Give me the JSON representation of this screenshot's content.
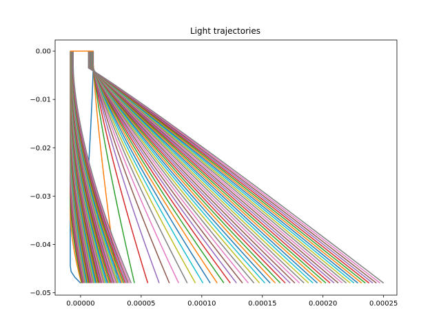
{
  "chart_data": {
    "type": "line",
    "title": "Light trajectories",
    "xlabel": "",
    "ylabel": "",
    "xlim": [
      -2.1e-05,
      0.000261
    ],
    "ylim": [
      -0.0505,
      0.0023
    ],
    "xticks": [
      0.0,
      5e-05,
      0.0001,
      0.00015,
      0.0002,
      0.00025
    ],
    "xtick_labels": [
      "0.00000",
      "0.00005",
      "0.00010",
      "0.00015",
      "0.00020",
      "0.00025"
    ],
    "yticks": [
      0.0,
      -0.01,
      -0.02,
      -0.03,
      -0.04,
      -0.05
    ],
    "ytick_labels": [
      "0.00",
      "−0.01",
      "−0.02",
      "−0.03",
      "−0.04",
      "−0.05"
    ],
    "grid": false,
    "legend": "none",
    "palette": [
      "#1f77b4",
      "#ff7f0e",
      "#2ca02c",
      "#d62728",
      "#9467bd",
      "#8c564b",
      "#e377c2",
      "#7f7f7f",
      "#bcbd22",
      "#17becf"
    ],
    "ray_bundle": {
      "num_rays": 48,
      "inner_start_x_range": [
        -8.5e-06,
        -2.5e-06
      ],
      "outer_start_x_range": [
        1.05e-05,
        2.5e-06
      ],
      "end_x_range": [
        5e-07,
        0.00025
      ],
      "top_y": 0.0,
      "bend_y_range": [
        -0.045,
        -0.003
      ],
      "bottom_y": -0.048
    }
  }
}
